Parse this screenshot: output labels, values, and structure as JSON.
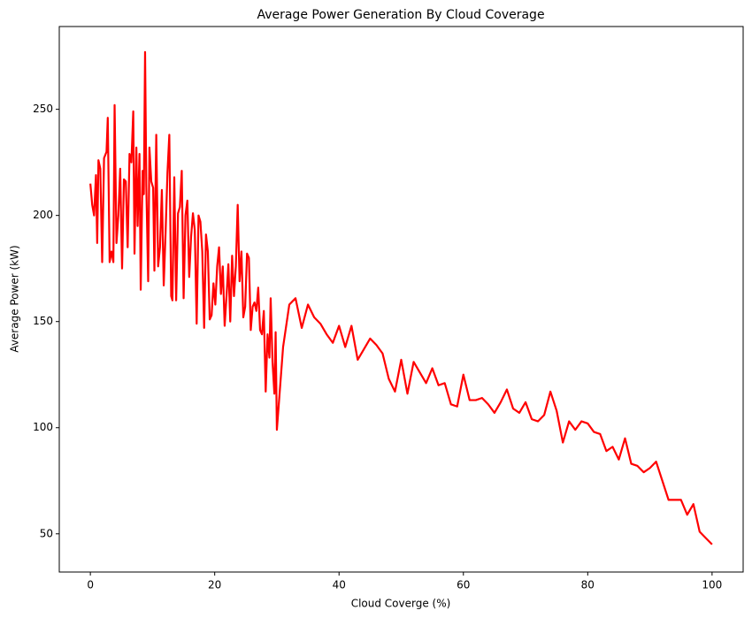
{
  "chart_data": {
    "type": "line",
    "title": "Average Power Generation By Cloud Coverage",
    "xlabel": "Cloud Coverge (%)",
    "ylabel": "Average Power (kW)",
    "color": "#ff0000",
    "xlim": [
      -5,
      105
    ],
    "xticks": [
      0,
      20,
      40,
      60,
      80,
      100
    ],
    "ylim": [
      32,
      289
    ],
    "yticks": [
      50,
      100,
      150,
      200,
      250
    ],
    "grid": false,
    "x": [
      0,
      0.3,
      0.6,
      0.9,
      1.1,
      1.3,
      1.6,
      1.9,
      2.2,
      2.6,
      2.8,
      3.1,
      3.4,
      3.7,
      3.9,
      4.2,
      4.5,
      4.8,
      5.1,
      5.4,
      5.7,
      6.0,
      6.3,
      6.6,
      6.9,
      7.1,
      7.4,
      7.6,
      7.9,
      8.1,
      8.4,
      8.6,
      8.8,
      9.0,
      9.3,
      9.5,
      9.8,
      10.1,
      10.3,
      10.6,
      10.9,
      11.2,
      11.5,
      11.8,
      12.1,
      12.4,
      12.7,
      13.0,
      13.2,
      13.5,
      13.8,
      14.1,
      14.4,
      14.7,
      15.0,
      15.3,
      15.6,
      15.9,
      16.2,
      16.5,
      16.8,
      17.1,
      17.4,
      17.7,
      18.0,
      18.3,
      18.6,
      18.9,
      19.2,
      19.5,
      19.8,
      20.1,
      20.4,
      20.7,
      21.0,
      21.3,
      21.6,
      21.9,
      22.2,
      22.5,
      22.8,
      23.1,
      23.4,
      23.7,
      24.0,
      24.3,
      24.6,
      24.9,
      25.2,
      25.5,
      25.8,
      26.1,
      26.4,
      26.7,
      27.0,
      27.3,
      27.6,
      27.9,
      28.2,
      28.5,
      28.8,
      29.0,
      29.3,
      29.6,
      29.8,
      30,
      31,
      32,
      33,
      34,
      35,
      36,
      37,
      38,
      39,
      40,
      41,
      42,
      43,
      44,
      45,
      46,
      47,
      48,
      49,
      50,
      51,
      52,
      53,
      54,
      55,
      56,
      57,
      58,
      59,
      60,
      61,
      62,
      63,
      64,
      65,
      66,
      67,
      68,
      69,
      70,
      71,
      72,
      73,
      74,
      75,
      76,
      77,
      78,
      79,
      80,
      81,
      82,
      83,
      84,
      85,
      86,
      87,
      88,
      89,
      90,
      91,
      92,
      93,
      94,
      95,
      96,
      97,
      98,
      99,
      100
    ],
    "values": [
      215,
      205,
      200,
      219,
      187,
      226,
      222,
      178,
      227,
      230,
      246,
      178,
      183,
      178,
      252,
      187,
      200,
      222,
      175,
      217,
      216,
      185,
      229,
      225,
      249,
      182,
      232,
      195,
      229,
      165,
      221,
      210,
      277,
      214,
      169,
      232,
      216,
      213,
      174,
      238,
      176,
      185,
      212,
      167,
      192,
      220,
      238,
      162,
      160,
      218,
      160,
      201,
      204,
      221,
      161,
      200,
      207,
      171,
      190,
      201,
      193,
      149,
      200,
      197,
      183,
      147,
      191,
      183,
      151,
      153,
      168,
      158,
      176,
      185,
      163,
      176,
      148,
      162,
      177,
      150,
      181,
      162,
      176,
      205,
      169,
      183,
      152,
      157,
      182,
      180,
      146,
      157,
      159,
      155,
      166,
      146,
      144,
      155,
      117,
      144,
      133,
      161,
      131,
      116,
      145,
      99,
      138,
      158,
      161,
      147,
      158,
      152,
      149,
      144,
      140,
      148,
      138,
      148,
      132,
      137,
      142,
      139,
      135,
      123,
      117,
      132,
      116,
      131,
      126,
      121,
      128,
      120,
      121,
      111,
      110,
      125,
      113,
      113,
      114,
      111,
      107,
      112,
      118,
      109,
      107,
      112,
      104,
      103,
      106,
      117,
      108,
      93,
      103,
      99,
      103,
      102,
      98,
      97,
      89,
      91,
      85,
      95,
      83,
      82,
      79,
      81,
      84,
      75,
      66,
      66,
      66,
      59,
      64,
      51,
      48,
      45
    ]
  }
}
